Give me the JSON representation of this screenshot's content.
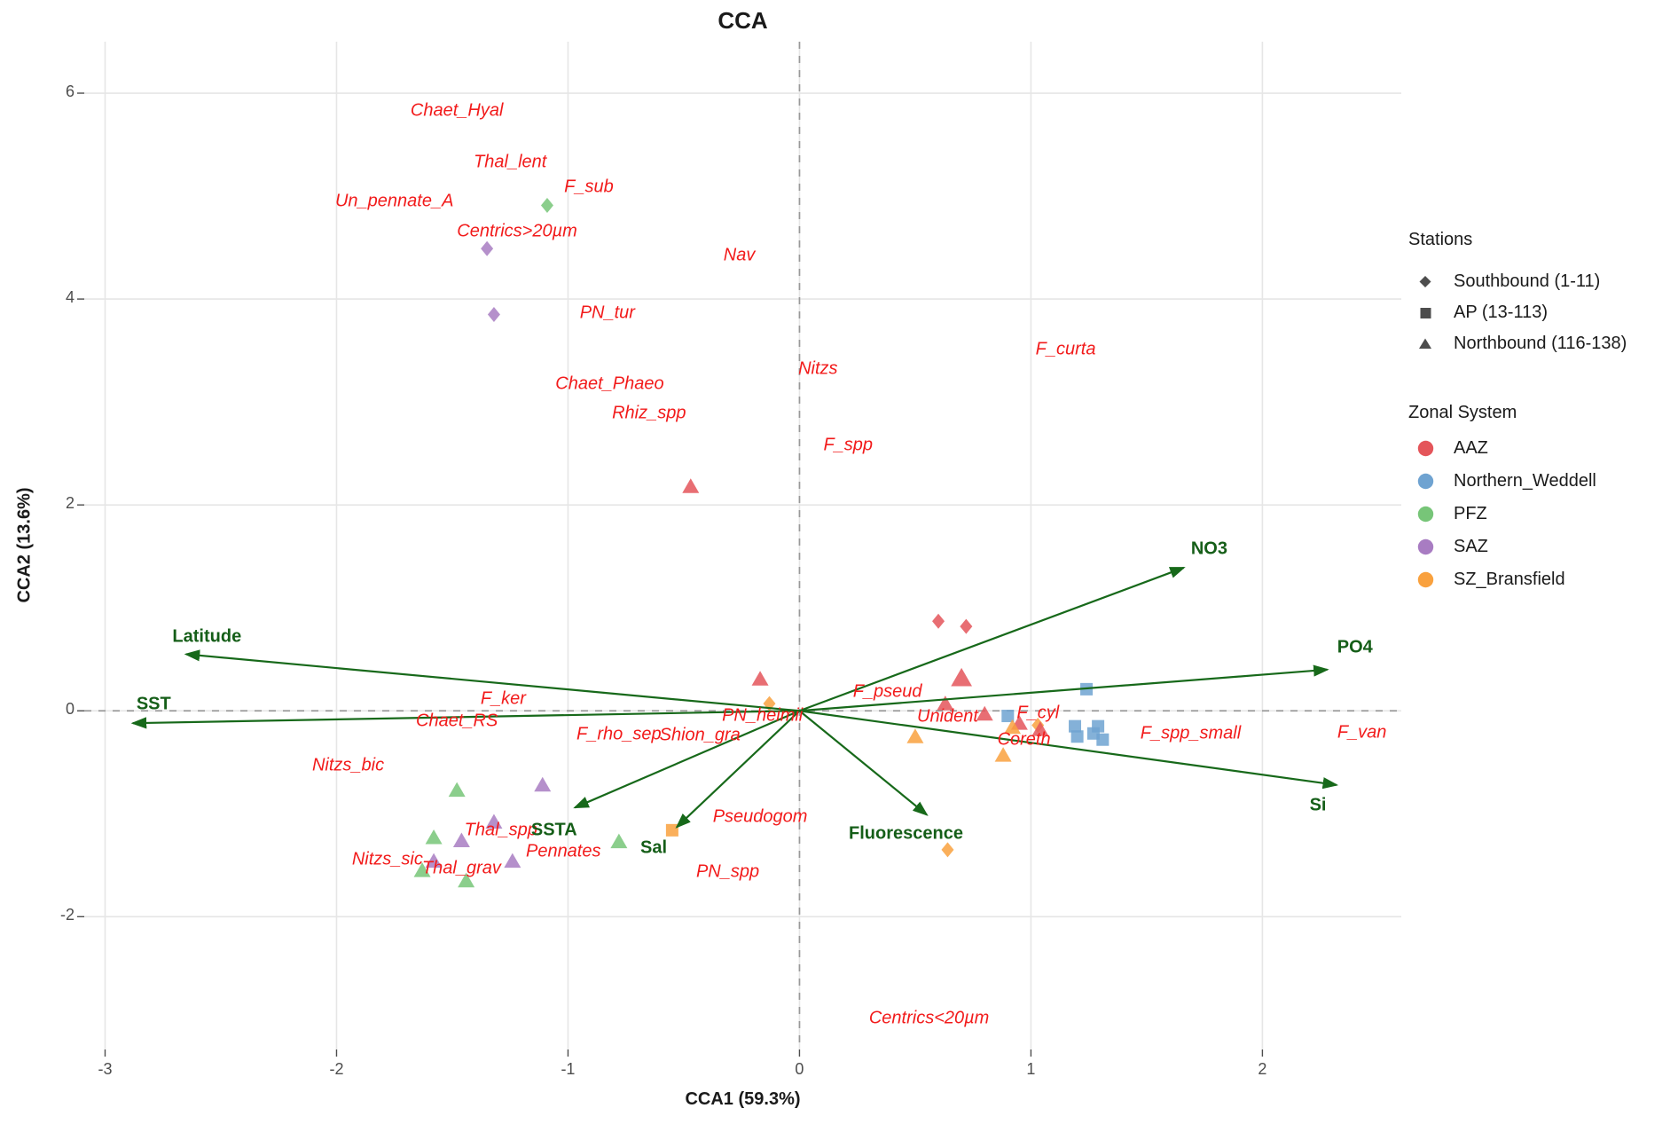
{
  "title": "CCA",
  "colors": {
    "AAZ": "#e4555a",
    "Northern_Weddell": "#6fa3d1",
    "PFZ": "#77c578",
    "SAZ": "#a87cc2",
    "SZ_Bransfield": "#f9a13e",
    "legend_shape_gray": "#4d4d4d",
    "species_label_red": "#f21b1b",
    "env_green": "#17691a",
    "gridline": "#e6e6e6",
    "refline": "#999999",
    "tick_text": "#4d4d4d"
  },
  "legend": {
    "stations": {
      "title": "Stations",
      "items": [
        {
          "shape": "diamond",
          "label": "Southbound (1-11)"
        },
        {
          "shape": "square",
          "label": "AP (13-113)"
        },
        {
          "shape": "triangle",
          "label": "Northbound (116-138)"
        }
      ]
    },
    "zones": {
      "title": "Zonal System",
      "items": [
        {
          "zone": "AAZ",
          "label": "AAZ"
        },
        {
          "zone": "Northern_Weddell",
          "label": "Northern_Weddell"
        },
        {
          "zone": "PFZ",
          "label": "PFZ"
        },
        {
          "zone": "SAZ",
          "label": "SAZ"
        },
        {
          "zone": "SZ_Bransfield",
          "label": "SZ_Bransfield"
        }
      ]
    }
  },
  "chart_data": {
    "type": "scatter",
    "title": "CCA",
    "xlabel": "CCA1 (59.3%)",
    "ylabel": "CCA2 (13.6%)",
    "xlim": [
      -3.09,
      2.6
    ],
    "ylim": [
      -3.29,
      6.5
    ],
    "x_ticks": [
      -3,
      -2,
      -1,
      0,
      1,
      2
    ],
    "y_ticks": [
      -2,
      0,
      2,
      4,
      6
    ],
    "grid": true,
    "legend_position": "right",
    "reference_lines": {
      "x": 0,
      "y": 0,
      "style": "dashed"
    },
    "env_arrows": [
      {
        "name": "Latitude",
        "x": -2.65,
        "y": 0.55,
        "lx": -2.56,
        "ly": 0.72
      },
      {
        "name": "SST",
        "x": -2.88,
        "y": -0.12,
        "lx": -2.79,
        "ly": 0.06
      },
      {
        "name": "NO3",
        "x": 1.66,
        "y": 1.39,
        "lx": 1.77,
        "ly": 1.57
      },
      {
        "name": "PO4",
        "x": 2.28,
        "y": 0.4,
        "lx": 2.4,
        "ly": 0.61
      },
      {
        "name": "Si",
        "x": 2.32,
        "y": -0.72,
        "lx": 2.24,
        "ly": -0.92
      },
      {
        "name": "Fluorescence",
        "x": 0.55,
        "y": -1.01,
        "lx": 0.46,
        "ly": -1.2
      },
      {
        "name": "Sal",
        "x": -0.53,
        "y": -1.13,
        "lx": -0.63,
        "ly": -1.33
      },
      {
        "name": "SSTA",
        "x": -0.97,
        "y": -0.94,
        "lx": -1.06,
        "ly": -1.16
      }
    ],
    "species_labels": [
      {
        "text": "Chaet_Hyal",
        "x": -1.48,
        "y": 5.83
      },
      {
        "text": "Thal_lent",
        "x": -1.25,
        "y": 5.33
      },
      {
        "text": "F_sub",
        "x": -0.91,
        "y": 5.09
      },
      {
        "text": "Un_pennate_A",
        "x": -1.75,
        "y": 4.95
      },
      {
        "text": "Centrics>20µm",
        "x": -1.22,
        "y": 4.66
      },
      {
        "text": "Nav",
        "x": -0.26,
        "y": 4.42
      },
      {
        "text": "PN_tur",
        "x": -0.83,
        "y": 3.86
      },
      {
        "text": "F_curta",
        "x": 1.15,
        "y": 3.51
      },
      {
        "text": "Nitzs",
        "x": 0.08,
        "y": 3.32
      },
      {
        "text": "Chaet_Phaeo",
        "x": -0.82,
        "y": 3.17
      },
      {
        "text": "Rhiz_spp",
        "x": -0.65,
        "y": 2.89
      },
      {
        "text": "F_spp",
        "x": 0.21,
        "y": 2.58
      },
      {
        "text": "F_pseud",
        "x": 0.38,
        "y": 0.18
      },
      {
        "text": "F_ker",
        "x": -1.28,
        "y": 0.11
      },
      {
        "text": "Chaet_RS",
        "x": -1.48,
        "y": -0.1
      },
      {
        "text": "PN_heimii",
        "x": -0.16,
        "y": -0.05
      },
      {
        "text": "F_rho_sep",
        "x": -0.78,
        "y": -0.23
      },
      {
        "text": "Shion_gra",
        "x": -0.43,
        "y": -0.24
      },
      {
        "text": "Unident",
        "x": 0.64,
        "y": -0.06
      },
      {
        "text": "F_cyl",
        "x": 1.03,
        "y": -0.02
      },
      {
        "text": "Coreth",
        "x": 0.97,
        "y": -0.28
      },
      {
        "text": "F_spp_small",
        "x": 1.69,
        "y": -0.22
      },
      {
        "text": "F_van",
        "x": 2.43,
        "y": -0.21
      },
      {
        "text": "Nitzs_bic",
        "x": -1.95,
        "y": -0.53
      },
      {
        "text": "Thal_spp",
        "x": -1.29,
        "y": -1.16
      },
      {
        "text": "Nitzs_sic",
        "x": -1.78,
        "y": -1.45
      },
      {
        "text": "Thal_grav",
        "x": -1.46,
        "y": -1.53
      },
      {
        "text": "Pennates",
        "x": -1.02,
        "y": -1.37
      },
      {
        "text": "Pseudogom",
        "x": -0.17,
        "y": -1.03
      },
      {
        "text": "PN_spp",
        "x": -0.31,
        "y": -1.57
      },
      {
        "text": "Centrics<20µm",
        "x": 0.56,
        "y": -2.99
      }
    ],
    "points": [
      {
        "x": -1.09,
        "y": 4.91,
        "shape": "diamond",
        "zone": "PFZ"
      },
      {
        "x": -1.35,
        "y": 4.49,
        "shape": "diamond",
        "zone": "SAZ"
      },
      {
        "x": -1.32,
        "y": 3.85,
        "shape": "diamond",
        "zone": "SAZ"
      },
      {
        "x": 0.6,
        "y": 0.87,
        "shape": "diamond",
        "zone": "AAZ"
      },
      {
        "x": 0.72,
        "y": 0.82,
        "shape": "diamond",
        "zone": "AAZ"
      },
      {
        "x": -0.13,
        "y": 0.07,
        "shape": "diamond",
        "zone": "SZ_Bransfield"
      },
      {
        "x": 1.03,
        "y": -0.14,
        "shape": "diamond",
        "zone": "SZ_Bransfield"
      },
      {
        "x": 0.64,
        "y": -1.35,
        "shape": "diamond",
        "zone": "SZ_Bransfield"
      },
      {
        "x": 1.24,
        "y": 0.21,
        "shape": "square",
        "zone": "Northern_Weddell"
      },
      {
        "x": 0.9,
        "y": -0.05,
        "shape": "square",
        "zone": "Northern_Weddell"
      },
      {
        "x": 1.19,
        "y": -0.15,
        "shape": "square",
        "zone": "Northern_Weddell"
      },
      {
        "x": 1.2,
        "y": -0.25,
        "shape": "square",
        "zone": "Northern_Weddell"
      },
      {
        "x": 1.29,
        "y": -0.15,
        "shape": "square",
        "zone": "Northern_Weddell"
      },
      {
        "x": 1.27,
        "y": -0.22,
        "shape": "square",
        "zone": "Northern_Weddell"
      },
      {
        "x": 1.31,
        "y": -0.28,
        "shape": "square",
        "zone": "Northern_Weddell"
      },
      {
        "x": -0.55,
        "y": -1.16,
        "shape": "square",
        "zone": "SZ_Bransfield"
      },
      {
        "x": -0.47,
        "y": 2.18,
        "shape": "triangle",
        "zone": "AAZ"
      },
      {
        "x": -0.17,
        "y": 0.31,
        "shape": "triangle",
        "zone": "AAZ"
      },
      {
        "x": 0.7,
        "y": 0.32,
        "shape": "triangle",
        "zone": "AAZ",
        "size": 1.25
      },
      {
        "x": 0.63,
        "y": 0.07,
        "shape": "triangle",
        "zone": "AAZ"
      },
      {
        "x": 0.8,
        "y": -0.03,
        "shape": "triangle",
        "zone": "AAZ"
      },
      {
        "x": 0.95,
        "y": -0.12,
        "shape": "triangle",
        "zone": "AAZ"
      },
      {
        "x": 1.04,
        "y": -0.18,
        "shape": "triangle",
        "zone": "AAZ"
      },
      {
        "x": 0.5,
        "y": -0.25,
        "shape": "triangle",
        "zone": "SZ_Bransfield"
      },
      {
        "x": 0.92,
        "y": -0.16,
        "shape": "triangle",
        "zone": "SZ_Bransfield"
      },
      {
        "x": 0.88,
        "y": -0.43,
        "shape": "triangle",
        "zone": "SZ_Bransfield"
      },
      {
        "x": -1.48,
        "y": -0.77,
        "shape": "triangle",
        "zone": "PFZ"
      },
      {
        "x": -1.58,
        "y": -1.23,
        "shape": "triangle",
        "zone": "PFZ"
      },
      {
        "x": -1.63,
        "y": -1.55,
        "shape": "triangle",
        "zone": "PFZ"
      },
      {
        "x": -1.44,
        "y": -1.65,
        "shape": "triangle",
        "zone": "PFZ"
      },
      {
        "x": -0.78,
        "y": -1.27,
        "shape": "triangle",
        "zone": "PFZ"
      },
      {
        "x": -1.11,
        "y": -0.72,
        "shape": "triangle",
        "zone": "SAZ"
      },
      {
        "x": -1.32,
        "y": -1.08,
        "shape": "triangle",
        "zone": "SAZ"
      },
      {
        "x": -1.46,
        "y": -1.26,
        "shape": "triangle",
        "zone": "SAZ"
      },
      {
        "x": -1.58,
        "y": -1.46,
        "shape": "triangle",
        "zone": "SAZ"
      },
      {
        "x": -1.24,
        "y": -1.46,
        "shape": "triangle",
        "zone": "SAZ"
      }
    ]
  }
}
